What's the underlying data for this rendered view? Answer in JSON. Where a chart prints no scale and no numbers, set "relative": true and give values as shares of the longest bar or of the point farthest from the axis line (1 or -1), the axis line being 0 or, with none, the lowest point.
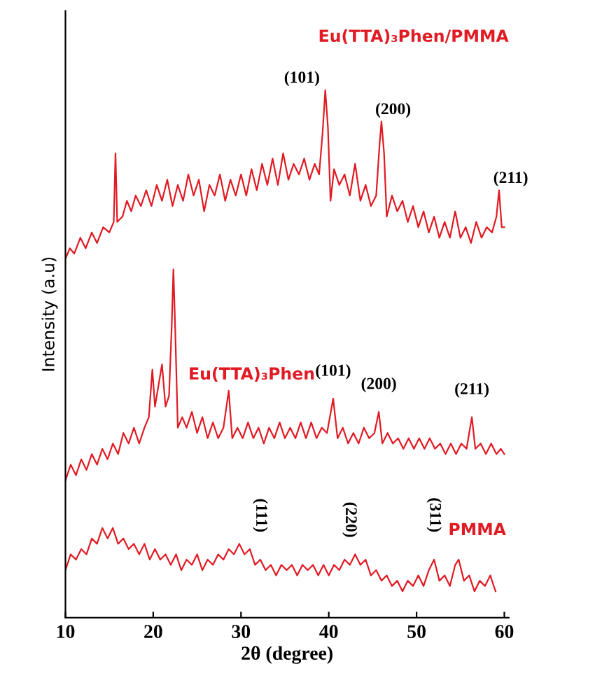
{
  "chart_data": {
    "type": "line",
    "relative": true,
    "xlabel": "2θ (degree)",
    "ylabel": "Intensity (a.u)",
    "xlim": [
      10,
      60.5
    ],
    "xticks": [
      10,
      20,
      30,
      40,
      50,
      60
    ],
    "grid": false,
    "legend": false,
    "marker": "none",
    "line_style": "solid",
    "tick_labels": "x",
    "series": [
      {
        "name": "Eu(TTA)₃Phen/PMMA",
        "color": "#e01b24",
        "x": [
          10,
          10.5,
          11,
          11.7,
          12.3,
          13,
          13.6,
          14.3,
          15,
          15.5,
          15.7,
          15.9,
          16.5,
          17,
          17.5,
          18,
          18.6,
          19.2,
          19.8,
          20.4,
          21,
          21.6,
          22.2,
          22.8,
          23.4,
          24,
          24.6,
          25.2,
          25.8,
          26.4,
          27,
          27.6,
          28.2,
          28.8,
          29.4,
          30,
          30.6,
          31.2,
          31.8,
          32.4,
          33,
          33.6,
          34.2,
          34.8,
          35.4,
          36,
          36.6,
          37.2,
          37.8,
          38.4,
          38.9,
          39.3,
          39.6,
          39.9,
          40.2,
          40.6,
          41.2,
          41.8,
          42.4,
          43,
          43.6,
          44.2,
          44.8,
          45.4,
          45.8,
          46.0,
          46.3,
          46.6,
          47.2,
          47.8,
          48.4,
          49,
          49.6,
          50.2,
          50.8,
          51.4,
          52,
          52.6,
          53.2,
          53.8,
          54.4,
          55,
          55.6,
          56.2,
          56.8,
          57.4,
          58,
          58.6,
          59.1,
          59.4,
          59.7,
          60
        ],
        "values": [
          0.68,
          0.7,
          0.69,
          0.72,
          0.7,
          0.73,
          0.71,
          0.74,
          0.73,
          0.75,
          0.88,
          0.75,
          0.76,
          0.79,
          0.77,
          0.8,
          0.78,
          0.81,
          0.78,
          0.82,
          0.79,
          0.83,
          0.78,
          0.82,
          0.79,
          0.84,
          0.8,
          0.83,
          0.77,
          0.82,
          0.8,
          0.84,
          0.79,
          0.83,
          0.8,
          0.84,
          0.8,
          0.85,
          0.81,
          0.86,
          0.82,
          0.87,
          0.82,
          0.88,
          0.83,
          0.86,
          0.84,
          0.87,
          0.83,
          0.86,
          0.84,
          0.92,
          1.0,
          0.93,
          0.79,
          0.85,
          0.82,
          0.84,
          0.8,
          0.86,
          0.79,
          0.82,
          0.78,
          0.8,
          0.9,
          0.94,
          0.88,
          0.76,
          0.8,
          0.77,
          0.79,
          0.75,
          0.78,
          0.74,
          0.77,
          0.73,
          0.76,
          0.72,
          0.75,
          0.72,
          0.77,
          0.72,
          0.74,
          0.71,
          0.75,
          0.72,
          0.74,
          0.73,
          0.76,
          0.81,
          0.74,
          0.74
        ]
      },
      {
        "name": "Eu(TTA)₃Phen",
        "color": "#e01b24",
        "x": [
          10,
          10.6,
          11.2,
          11.8,
          12.4,
          13,
          13.6,
          14.2,
          14.8,
          15.4,
          16,
          16.6,
          17.2,
          17.8,
          18.4,
          19,
          19.5,
          19.9,
          20.2,
          20.6,
          21,
          21.4,
          21.8,
          22.1,
          22.3,
          22.5,
          22.8,
          23.3,
          23.8,
          24.4,
          25,
          25.6,
          26.2,
          26.8,
          27.4,
          28,
          28.6,
          29,
          29.6,
          30.2,
          30.8,
          31.4,
          32,
          32.6,
          33.2,
          33.8,
          34.4,
          35,
          35.6,
          36.2,
          36.8,
          37.4,
          38,
          38.6,
          39.2,
          39.8,
          40.5,
          41,
          41.6,
          42.2,
          42.8,
          43.4,
          44,
          44.6,
          45.2,
          45.7,
          46.1,
          46.7,
          47.3,
          47.9,
          48.5,
          49.1,
          49.7,
          50.3,
          50.9,
          51.5,
          52.1,
          52.7,
          53.3,
          53.9,
          54.5,
          55.1,
          55.7,
          56.3,
          56.7,
          57.3,
          57.9,
          58.5,
          59.1,
          59.6,
          60
        ],
        "values": [
          0.26,
          0.29,
          0.27,
          0.3,
          0.28,
          0.31,
          0.29,
          0.32,
          0.3,
          0.33,
          0.31,
          0.35,
          0.33,
          0.36,
          0.33,
          0.36,
          0.38,
          0.47,
          0.4,
          0.44,
          0.48,
          0.4,
          0.42,
          0.55,
          0.66,
          0.55,
          0.36,
          0.38,
          0.36,
          0.39,
          0.35,
          0.38,
          0.34,
          0.37,
          0.34,
          0.36,
          0.43,
          0.34,
          0.36,
          0.34,
          0.37,
          0.34,
          0.36,
          0.33,
          0.36,
          0.34,
          0.37,
          0.34,
          0.36,
          0.34,
          0.37,
          0.34,
          0.37,
          0.34,
          0.36,
          0.35,
          0.415,
          0.34,
          0.36,
          0.33,
          0.35,
          0.33,
          0.36,
          0.34,
          0.35,
          0.39,
          0.33,
          0.35,
          0.33,
          0.34,
          0.32,
          0.34,
          0.32,
          0.34,
          0.32,
          0.34,
          0.32,
          0.33,
          0.31,
          0.33,
          0.31,
          0.33,
          0.32,
          0.38,
          0.32,
          0.33,
          0.31,
          0.33,
          0.31,
          0.32,
          0.31
        ]
      },
      {
        "name": "PMMA",
        "color": "#e01b24",
        "x": [
          10,
          10.6,
          11.2,
          11.8,
          12.4,
          13,
          13.6,
          14.2,
          14.8,
          15.4,
          16,
          16.6,
          17.2,
          17.8,
          18.4,
          19,
          19.6,
          20.2,
          20.8,
          21.4,
          22,
          22.6,
          23.2,
          23.8,
          24.4,
          25,
          25.6,
          26.2,
          26.8,
          27.4,
          28,
          28.6,
          29.2,
          29.8,
          30.4,
          31,
          31.6,
          32.2,
          32.8,
          33.4,
          34,
          34.6,
          35.2,
          35.8,
          36.4,
          37,
          37.6,
          38.2,
          38.8,
          39.4,
          40,
          40.6,
          41.2,
          41.8,
          42.4,
          43,
          43.6,
          44.2,
          44.8,
          45.4,
          46,
          46.6,
          47.2,
          47.8,
          48.4,
          49,
          49.6,
          50.2,
          50.8,
          51.4,
          52,
          52.6,
          53.2,
          53.8,
          54.4,
          54.8,
          55.4,
          56,
          56.6,
          57.2,
          57.8,
          58.4,
          59
        ],
        "values": [
          0.09,
          0.12,
          0.11,
          0.13,
          0.12,
          0.15,
          0.14,
          0.17,
          0.15,
          0.17,
          0.14,
          0.15,
          0.13,
          0.14,
          0.12,
          0.14,
          0.11,
          0.13,
          0.11,
          0.12,
          0.1,
          0.12,
          0.09,
          0.11,
          0.1,
          0.12,
          0.09,
          0.11,
          0.1,
          0.12,
          0.11,
          0.13,
          0.12,
          0.14,
          0.12,
          0.13,
          0.1,
          0.11,
          0.09,
          0.1,
          0.08,
          0.1,
          0.09,
          0.1,
          0.08,
          0.1,
          0.09,
          0.1,
          0.08,
          0.1,
          0.08,
          0.1,
          0.09,
          0.11,
          0.1,
          0.12,
          0.1,
          0.11,
          0.08,
          0.09,
          0.07,
          0.08,
          0.06,
          0.07,
          0.05,
          0.07,
          0.06,
          0.08,
          0.06,
          0.09,
          0.11,
          0.07,
          0.08,
          0.06,
          0.1,
          0.11,
          0.07,
          0.08,
          0.05,
          0.07,
          0.06,
          0.08,
          0.05
        ]
      }
    ],
    "annotations": [
      {
        "text": "(101)",
        "x": 39.6,
        "y": 1.0
      },
      {
        "text": "(200)",
        "x": 46.0,
        "y": 0.94
      },
      {
        "text": "(211)",
        "x": 59.4,
        "y": 0.81
      },
      {
        "text": "(101)",
        "x": 40.5,
        "y": 0.415
      },
      {
        "text": "(200)",
        "x": 45.7,
        "y": 0.39
      },
      {
        "text": "(211)",
        "x": 56.3,
        "y": 0.38
      },
      {
        "text": "(111)",
        "x": 32.2,
        "y": 0.11
      },
      {
        "text": "(220)",
        "x": 42.4,
        "y": 0.1
      },
      {
        "text": "(311)",
        "x": 52.0,
        "y": 0.11
      }
    ]
  }
}
